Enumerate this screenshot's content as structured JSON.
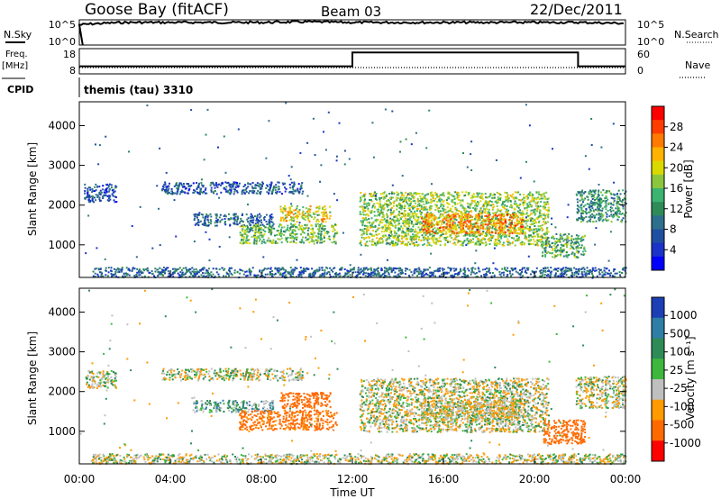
{
  "header": {
    "station": "Goose Bay (fitACF)",
    "beam": "Beam 03",
    "date": "22/Dec/2011"
  },
  "top_panels": {
    "nsky_label": "N.Sky",
    "nsearch_label": "N.Search",
    "noise_ticks": [
      "10^5",
      "10^0"
    ],
    "freq_label": "Freq.",
    "freq_unit": "[MHz]",
    "freq_ticks": [
      "18",
      "8"
    ],
    "nave_label": "Nave",
    "nave_ticks": [
      "60",
      "0"
    ],
    "cpid_label": "CPID",
    "cpid_text": "themis (tau) 3310"
  },
  "colorbars": {
    "power": {
      "label": "Power [dB]",
      "ticks": [
        "28",
        "24",
        "20",
        "16",
        "12",
        "8",
        "4"
      ],
      "colors": [
        "#ff0000",
        "#ff3d00",
        "#ff7a00",
        "#ffb300",
        "#d9d900",
        "#8cc63f",
        "#3cb371",
        "#2e8b57",
        "#2e6f8e",
        "#1f4fa0",
        "#1a33c9",
        "#0000ff"
      ]
    },
    "velocity": {
      "label": "Velocity [m s⁻¹]",
      "ticks": [
        "1000",
        "500",
        "100",
        "25",
        "-25",
        "-100",
        "-500",
        "-1000"
      ],
      "colors": [
        "#1c3fb6",
        "#2e7ea6",
        "#2e8b57",
        "#3db83d",
        "#bfbfbf",
        "#ff9a00",
        "#ff6a00",
        "#ff0000"
      ]
    }
  },
  "chart_data": [
    {
      "type": "line",
      "title": "N.Sky",
      "x": [
        "00:00",
        "02:00",
        "04:00",
        "06:00",
        "08:00",
        "10:00",
        "12:00",
        "14:00",
        "16:00",
        "18:00",
        "20:00",
        "22:00",
        "24:00"
      ],
      "series": [
        {
          "name": "N.Sky",
          "values": [
            10000.0,
            30000.0,
            30000.0,
            30000.0,
            30000.0,
            40000.0,
            30000.0,
            30000.0,
            30000.0,
            30000.0,
            30000.0,
            30000.0,
            20000.0
          ]
        }
      ],
      "ylim": [
        1,
        100000
      ],
      "yscale": "log"
    },
    {
      "type": "line",
      "title": "Freq. / Nave",
      "x": [
        "00:00",
        "12:00",
        "12:00",
        "21:55",
        "21:55",
        "24:00"
      ],
      "series": [
        {
          "name": "Freq.",
          "values": [
            11,
            11,
            16.5,
            16.5,
            11,
            11
          ]
        },
        {
          "name": "Nave",
          "values": [
            15,
            15,
            15,
            15,
            15,
            15
          ]
        }
      ],
      "ylim": [
        8,
        18
      ]
    },
    {
      "type": "heatmap",
      "title": "Power [dB]",
      "xlabel": "Time UT",
      "ylabel": "Slant Range [km]",
      "xlim": [
        "00:00",
        "24:00"
      ],
      "ylim": [
        180,
        4600
      ],
      "x_ticks": [
        "00:00",
        "04:00",
        "08:00",
        "12:00",
        "16:00",
        "20:00",
        "00:00"
      ],
      "y_ticks": [
        1000,
        2000,
        3000,
        4000
      ],
      "color_ticks": [
        4,
        8,
        12,
        16,
        20,
        24,
        28
      ],
      "regions": [
        {
          "t": [
            0.2,
            1.6
          ],
          "range": [
            2100,
            2550
          ],
          "level": 7
        },
        {
          "t": [
            3.6,
            9.8
          ],
          "range": [
            2300,
            2600
          ],
          "level": 7
        },
        {
          "t": [
            5.0,
            8.5
          ],
          "range": [
            1500,
            1800
          ],
          "level": 8
        },
        {
          "t": [
            7.0,
            11.3
          ],
          "range": [
            1050,
            1550
          ],
          "level": 15
        },
        {
          "t": [
            8.8,
            11.0
          ],
          "range": [
            1600,
            2000
          ],
          "level": 20
        },
        {
          "t": [
            12.3,
            20.6
          ],
          "range": [
            1000,
            2350
          ],
          "level": 17
        },
        {
          "t": [
            15.0,
            19.5
          ],
          "range": [
            1300,
            1800
          ],
          "level": 24
        },
        {
          "t": [
            20.3,
            22.2
          ],
          "range": [
            700,
            1300
          ],
          "level": 14
        },
        {
          "t": [
            21.8,
            24.0
          ],
          "range": [
            1600,
            2400
          ],
          "level": 12
        },
        {
          "t": [
            0.5,
            24.0
          ],
          "range": [
            200,
            450
          ],
          "level": 8
        }
      ]
    },
    {
      "type": "heatmap",
      "title": "Velocity [m s⁻¹]",
      "xlabel": "Time UT",
      "ylabel": "Slant Range [km]",
      "xlim": [
        "00:00",
        "24:00"
      ],
      "ylim": [
        180,
        4600
      ],
      "x_ticks": [
        "00:00",
        "04:00",
        "08:00",
        "12:00",
        "16:00",
        "20:00",
        "00:00"
      ],
      "y_ticks": [
        1000,
        2000,
        3000,
        4000
      ],
      "color_ticks": [
        1000,
        500,
        100,
        25,
        -25,
        -100,
        -500,
        -1000
      ],
      "regions": [
        {
          "t": [
            0.2,
            1.6
          ],
          "range": [
            2100,
            2550
          ],
          "velocity": 0
        },
        {
          "t": [
            3.6,
            9.8
          ],
          "range": [
            2300,
            2600
          ],
          "velocity": 0
        },
        {
          "t": [
            5.0,
            8.5
          ],
          "range": [
            1500,
            1800
          ],
          "velocity": 60
        },
        {
          "t": [
            7.0,
            11.3
          ],
          "range": [
            1050,
            1550
          ],
          "velocity": -150
        },
        {
          "t": [
            8.8,
            11.0
          ],
          "range": [
            1600,
            2000
          ],
          "velocity": -250
        },
        {
          "t": [
            12.3,
            20.6
          ],
          "range": [
            1000,
            2350
          ],
          "velocity": 0
        },
        {
          "t": [
            15.0,
            19.5
          ],
          "range": [
            1300,
            1800
          ],
          "velocity": -20
        },
        {
          "t": [
            20.3,
            22.2
          ],
          "range": [
            700,
            1300
          ],
          "velocity": -300
        },
        {
          "t": [
            21.8,
            24.0
          ],
          "range": [
            1600,
            2400
          ],
          "velocity": 0
        },
        {
          "t": [
            0.5,
            24.0
          ],
          "range": [
            200,
            450
          ],
          "velocity": 0
        }
      ]
    }
  ]
}
